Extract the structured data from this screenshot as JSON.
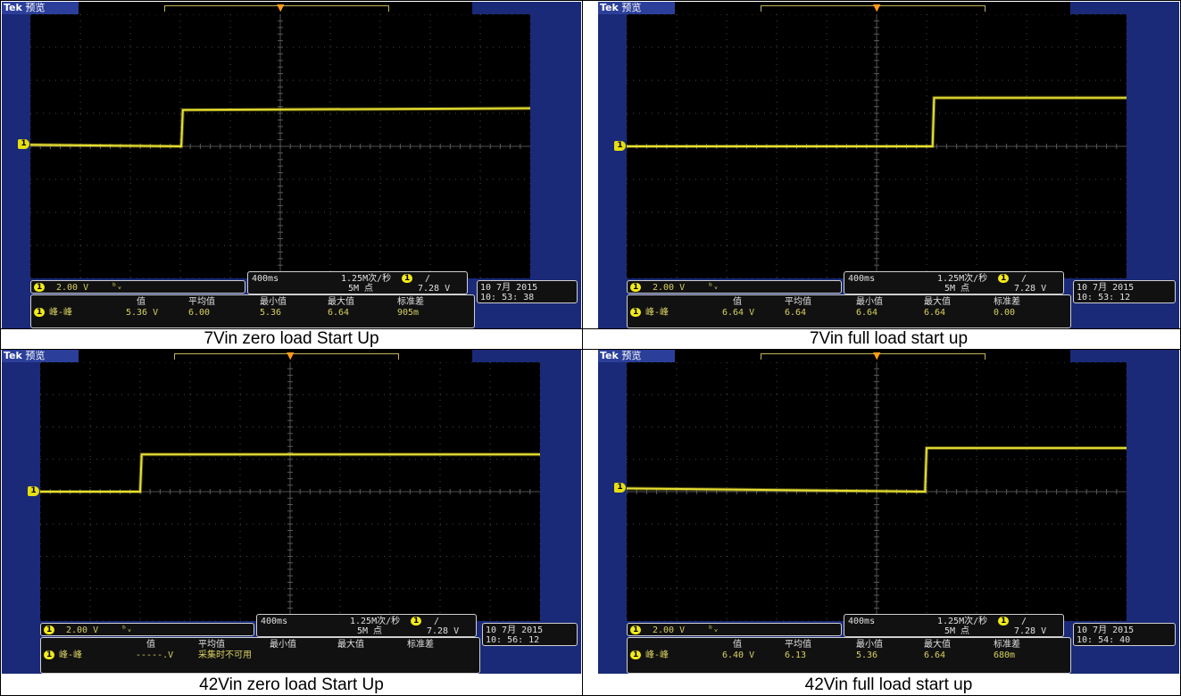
{
  "figure": {
    "captions": [
      "7Vin zero load Start Up",
      "7Vin full load start up",
      "42Vin zero load Start Up",
      "42Vin full load start up"
    ]
  },
  "colors": {
    "bezel": "#1a2a78",
    "screen": "#000000",
    "trace": "#e8e030",
    "graticule": "#5a5a5a",
    "channel_marker": "#e6df10",
    "trigger_marker": "#ff9a1a"
  },
  "panels": [
    {
      "header": {
        "brand": "Tek",
        "mode": "预览"
      },
      "channel": {
        "number": "1",
        "scale": "2.00 V",
        "bw_icon": "ᵇᵥ"
      },
      "timebase": {
        "per_div": "400ms",
        "rate": "1.25M次/秒",
        "points": "5M 点",
        "trigger_channel": "1",
        "trigger_slope": "/",
        "trigger_level": "7.28 V"
      },
      "datetime": {
        "date": "10 7月  2015",
        "time": "10: 53: 38"
      },
      "measurement": {
        "label": "峰-峰",
        "headers": [
          "值",
          "平均值",
          "最小值",
          "最大值",
          "标准差"
        ],
        "values": [
          "5.36 V",
          "6.00",
          "5.36",
          "6.64",
          "905m"
        ],
        "note": ""
      }
    },
    {
      "header": {
        "brand": "Tek",
        "mode": "预览"
      },
      "channel": {
        "number": "1",
        "scale": "2.00 V",
        "bw_icon": "ᵇᵥ"
      },
      "timebase": {
        "per_div": "400ms",
        "rate": "1.25M次/秒",
        "points": "5M 点",
        "trigger_channel": "1",
        "trigger_slope": "/",
        "trigger_level": "7.28 V"
      },
      "datetime": {
        "date": "10 7月  2015",
        "time": "10: 53: 12"
      },
      "measurement": {
        "label": "峰-峰",
        "headers": [
          "值",
          "平均值",
          "最小值",
          "最大值",
          "标准差"
        ],
        "values": [
          "6.64 V",
          "6.64",
          "6.64",
          "6.64",
          "0.00"
        ],
        "note": ""
      }
    },
    {
      "header": {
        "brand": "Tek",
        "mode": "预览"
      },
      "channel": {
        "number": "1",
        "scale": "2.00 V",
        "bw_icon": "ᵇᵥ"
      },
      "timebase": {
        "per_div": "400ms",
        "rate": "1.25M次/秒",
        "points": "5M 点",
        "trigger_channel": "1",
        "trigger_slope": "/",
        "trigger_level": "7.28 V"
      },
      "datetime": {
        "date": "10 7月  2015",
        "time": "10: 56: 12"
      },
      "measurement": {
        "label": "峰-峰",
        "headers": [
          "值",
          "平均值",
          "最小值",
          "最大值",
          "标准差"
        ],
        "values": [
          "-----.V",
          "",
          "",
          "",
          ""
        ],
        "note": "采集时不可用"
      }
    },
    {
      "header": {
        "brand": "Tek",
        "mode": "预览"
      },
      "channel": {
        "number": "1",
        "scale": "2.00 V",
        "bw_icon": "ᵇᵥ"
      },
      "timebase": {
        "per_div": "400ms",
        "rate": "1.25M次/秒",
        "points": "5M 点",
        "trigger_channel": "1",
        "trigger_slope": "/",
        "trigger_level": "7.28 V"
      },
      "datetime": {
        "date": "10 7月  2015",
        "time": "10: 54: 40"
      },
      "measurement": {
        "label": "峰-峰",
        "headers": [
          "值",
          "平均值",
          "最小值",
          "最大值",
          "标准差"
        ],
        "values": [
          "6.40 V",
          "6.13",
          "5.36",
          "6.64",
          "680m"
        ],
        "note": ""
      }
    }
  ],
  "chart_data": [
    {
      "type": "line",
      "xlabel": "",
      "ylabel": "",
      "xlim": [
        -5,
        5
      ],
      "ylim": [
        -4,
        4
      ],
      "x_unit_per_div": "400ms",
      "y_unit_per_div": "2.00 V",
      "grid": true,
      "series": [
        {
          "x": [
            -5,
            -1.98,
            -1.95,
            5
          ],
          "y": [
            0.05,
            0.0,
            1.1,
            1.15
          ]
        }
      ]
    },
    {
      "type": "line",
      "xlabel": "",
      "ylabel": "",
      "xlim": [
        -5,
        5
      ],
      "ylim": [
        -4,
        4
      ],
      "x_unit_per_div": "400ms",
      "y_unit_per_div": "2.00 V",
      "grid": true,
      "series": [
        {
          "x": [
            -5,
            1.12,
            1.15,
            5
          ],
          "y": [
            0.0,
            0.0,
            1.47,
            1.47
          ]
        }
      ]
    },
    {
      "type": "line",
      "xlabel": "",
      "ylabel": "",
      "xlim": [
        -5,
        5
      ],
      "ylim": [
        -4,
        4
      ],
      "x_unit_per_div": "400ms",
      "y_unit_per_div": "2.00 V",
      "grid": true,
      "series": [
        {
          "x": [
            -5,
            -3.0,
            -2.97,
            5
          ],
          "y": [
            0.0,
            0.0,
            1.15,
            1.15
          ]
        }
      ]
    },
    {
      "type": "line",
      "xlabel": "",
      "ylabel": "",
      "xlim": [
        -5,
        5
      ],
      "ylim": [
        -4,
        4
      ],
      "x_unit_per_div": "400ms",
      "y_unit_per_div": "2.00 V",
      "grid": true,
      "series": [
        {
          "x": [
            -5,
            0.97,
            1.0,
            5
          ],
          "y": [
            0.1,
            0.0,
            1.35,
            1.35
          ]
        }
      ]
    }
  ]
}
